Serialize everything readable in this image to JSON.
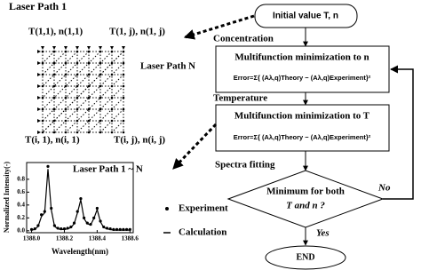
{
  "grid": {
    "title": "Laser Path 1",
    "labels": [
      "T(1,1), n(1,1)",
      "T(1, j), n(1, j)",
      "Laser Path N",
      "T(i, 1), n(i, 1)",
      "T(i, j), n(i, j)"
    ]
  },
  "chart_data": {
    "type": "scatter-line",
    "title": "Laser Path 1 ~ N",
    "x_label": "Wavelength(nm)",
    "y_label": "Normalized Intensity(-)",
    "x": [
      1388.0,
      1388.02,
      1388.04,
      1388.06,
      1388.08,
      1388.1,
      1388.12,
      1388.14,
      1388.16,
      1388.18,
      1388.2,
      1388.22,
      1388.24,
      1388.26,
      1388.28,
      1388.3,
      1388.32,
      1388.34,
      1388.36,
      1388.38,
      1388.4,
      1388.42,
      1388.44,
      1388.46,
      1388.48,
      1388.5,
      1388.52,
      1388.54,
      1388.56,
      1388.58,
      1388.6
    ],
    "series": [
      {
        "name": "Experiment",
        "color": "#000000",
        "values": [
          0.02,
          0.03,
          0.08,
          0.25,
          0.3,
          1.0,
          0.35,
          0.08,
          0.04,
          0.03,
          0.03,
          0.04,
          0.06,
          0.12,
          0.3,
          0.5,
          0.2,
          0.12,
          0.1,
          0.2,
          0.35,
          0.15,
          0.06,
          0.04,
          0.03,
          0.02,
          0.02,
          0.02,
          0.02,
          0.02,
          0.02
        ]
      },
      {
        "name": "Calculation",
        "color": "#000000",
        "values": [
          0.01,
          0.02,
          0.07,
          0.22,
          0.28,
          0.96,
          0.33,
          0.07,
          0.03,
          0.02,
          0.02,
          0.03,
          0.05,
          0.11,
          0.28,
          0.48,
          0.19,
          0.11,
          0.09,
          0.19,
          0.33,
          0.14,
          0.05,
          0.03,
          0.02,
          0.01,
          0.01,
          0.01,
          0.01,
          0.01,
          0.01
        ]
      }
    ],
    "xlim": [
      1387.97,
      1388.62
    ],
    "ylim": [
      -0.03,
      1.06
    ],
    "xticks": [
      {
        "value": 1388.0,
        "label": "1388.0"
      },
      1388.2,
      1388.4,
      1388.6
    ],
    "yticks": [
      {
        "value": 0,
        "label": "0.0"
      },
      0.2,
      0.4,
      0.6,
      0.8
    ]
  },
  "flow": {
    "start": "Initial value T, n",
    "concentration": "Concentration",
    "box1_title": "Multifunction minimization to n",
    "error1": "Error=Σ{ (Aλ,q)Theory − (Aλ,q)Experiment}²",
    "temperature": "Temperature",
    "box2_title": "Multifunction minimization to T",
    "error2": "Error=Σ{ (Aλ,q)Theory − (Aλ,q)Experiment}²",
    "spectra": "Spectra fitting",
    "decision_1": "Minimum for both",
    "decision_2": "T and n ?",
    "no": "No",
    "yes": "Yes",
    "end": "END"
  }
}
